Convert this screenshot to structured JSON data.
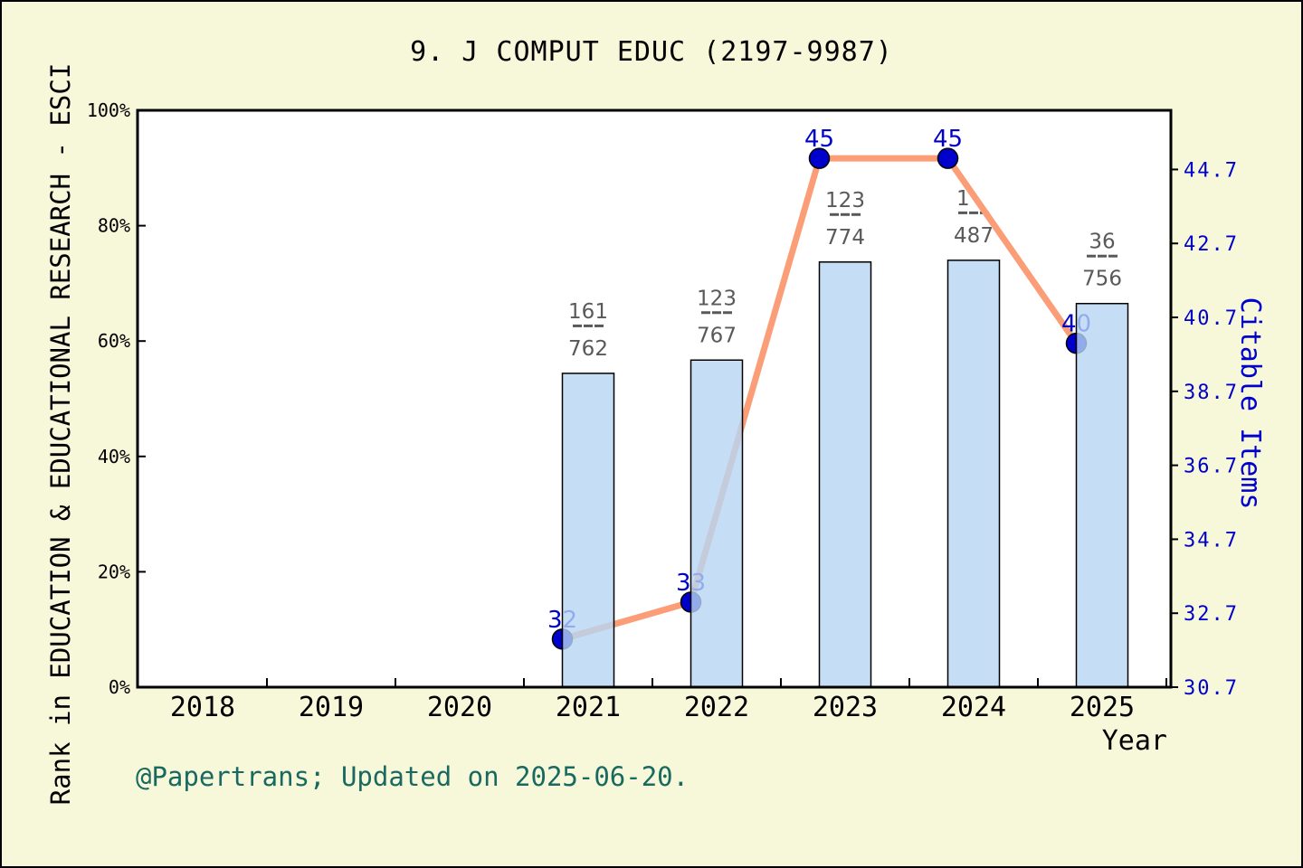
{
  "title": "9. J COMPUT EDUC (2197-9987)",
  "footer": "@Papertrans; Updated on 2025-06-20.",
  "axes": {
    "x": {
      "label": "Year",
      "ticks": [
        "2018",
        "2019",
        "2020",
        "2021",
        "2022",
        "2023",
        "2024",
        "2025"
      ]
    },
    "left": {
      "label": "Rank in EDUCATION & EDUCATIONAL RESEARCH - ESCI",
      "ticks": [
        "0%",
        "20%",
        "40%",
        "60%",
        "80%",
        "100%"
      ]
    },
    "right": {
      "label": "Citable Items",
      "ticks": [
        "30.7",
        "32.7",
        "34.7",
        "36.7",
        "38.7",
        "40.7",
        "42.7",
        "44.7"
      ]
    }
  },
  "chart_data": {
    "type": "bar+line",
    "categories": [
      "2018",
      "2019",
      "2020",
      "2021",
      "2022",
      "2023",
      "2024",
      "2025"
    ],
    "bar_series": {
      "name": "Rank percentile in EDUCATION & EDUCATIONAL RESEARCH - ESCI",
      "axis": "left",
      "years": [
        "2021",
        "2022",
        "2023",
        "2024",
        "2025"
      ],
      "values_percent": [
        54.4,
        56.7,
        73.7,
        74.0,
        66.5
      ],
      "fraction_labels": [
        {
          "top": "161",
          "bottom": "762"
        },
        {
          "top": "123",
          "bottom": "767"
        },
        {
          "top": "123",
          "bottom": "774"
        },
        {
          "top": "1",
          "bottom": "487",
          "align": "left"
        },
        {
          "top": "36",
          "bottom": "756"
        }
      ]
    },
    "line_series": {
      "name": "Citable Items",
      "axis": "right",
      "years": [
        "2021",
        "2022",
        "2023",
        "2024",
        "2025"
      ],
      "values": [
        32,
        33,
        45,
        45,
        40
      ],
      "point_labels": [
        "32",
        "33",
        "45",
        "45",
        "40"
      ]
    },
    "left_axis_range_percent": [
      0,
      100
    ],
    "right_axis_range": [
      30.7,
      46.3
    ],
    "grid": false,
    "legend": false
  },
  "colors": {
    "background": "#F7F7DA",
    "plot_background": "#FFFFFF",
    "frame": "#000000",
    "bar_fill": "#B7D6F4",
    "bar_opacity": 0.8,
    "bar_border": "#000000",
    "line": "#FB9E77",
    "marker": "#0000CD",
    "marker_border": "#000000",
    "right_axis_text": "#0000CC",
    "point_label_text": "#0000CC",
    "fraction_text": "#595959",
    "footer_text": "#186A60",
    "tick_text": "#000000"
  }
}
